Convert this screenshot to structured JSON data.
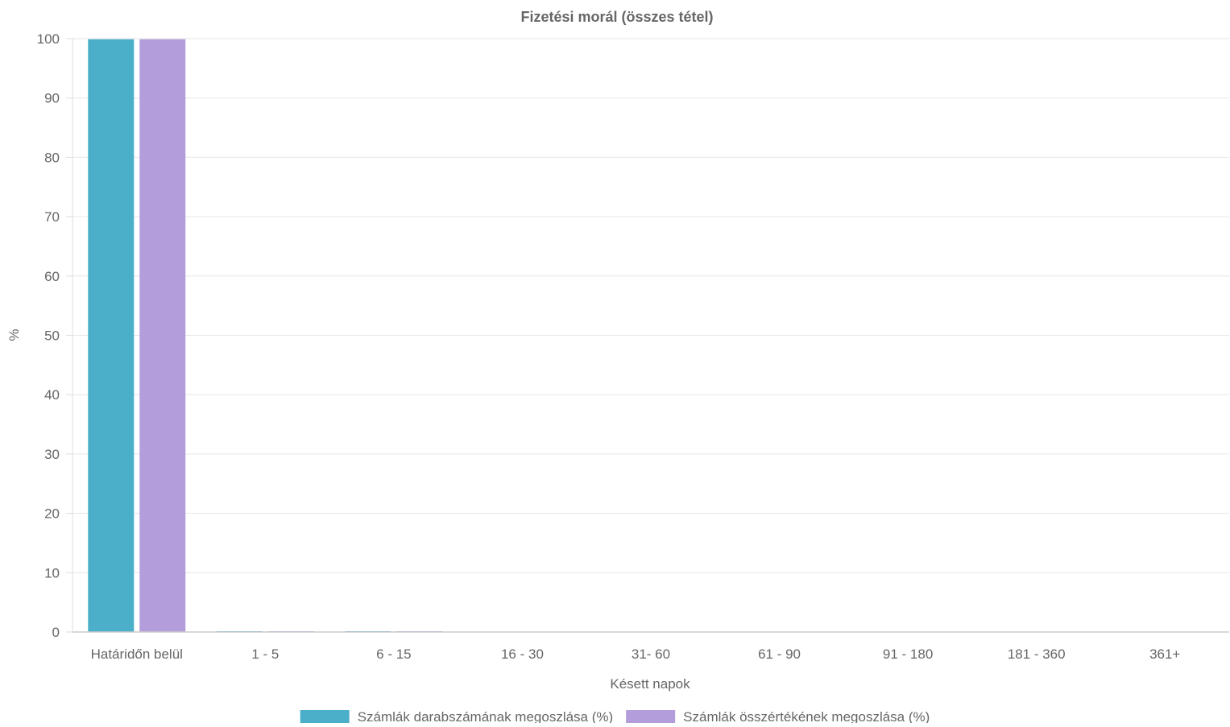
{
  "chart_data": {
    "type": "bar",
    "title": "Fizetési morál (összes tétel)",
    "xlabel": "Késett napok",
    "ylabel": "%",
    "ylim": [
      0,
      100
    ],
    "yticks": [
      0,
      10,
      20,
      30,
      40,
      50,
      60,
      70,
      80,
      90,
      100
    ],
    "grid": true,
    "legend_position": "bottom",
    "categories": [
      "Határidőn belül",
      "1 - 5",
      "6 - 15",
      "16 - 30",
      "31- 60",
      "61 - 90",
      "91 - 180",
      "181 - 360",
      "361+"
    ],
    "series": [
      {
        "name": "Számlák darabszámának megoszlása (%)",
        "color": "#4bafc9",
        "values": [
          99.9,
          0.1,
          0.05,
          0,
          0,
          0,
          0,
          0,
          0
        ]
      },
      {
        "name": "Számlák összértékének megoszlása (%)",
        "color": "#b39ddb",
        "values": [
          99.9,
          0.05,
          0.1,
          0,
          0,
          0,
          0,
          0,
          0
        ]
      }
    ]
  }
}
